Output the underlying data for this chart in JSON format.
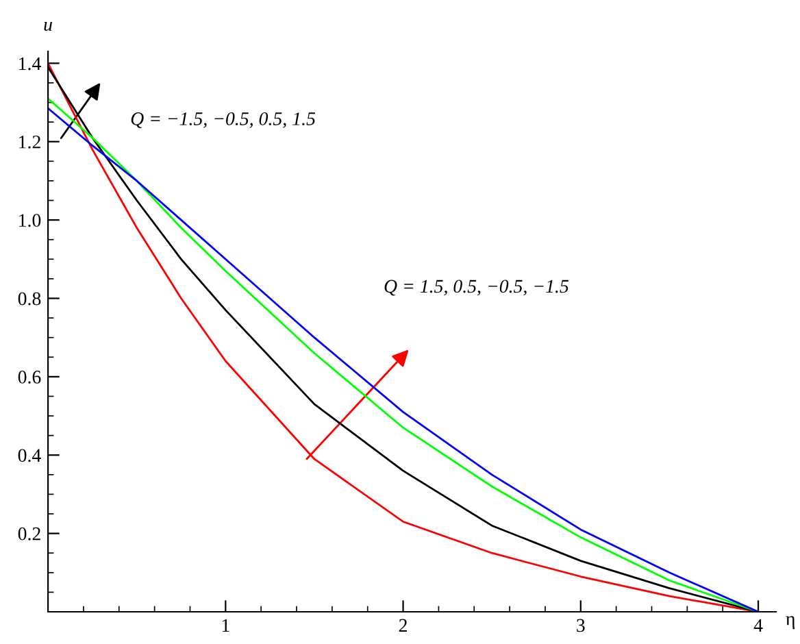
{
  "chart_data": {
    "type": "line",
    "xlabel": "η",
    "ylabel": "u",
    "x": [
      0,
      0.25,
      0.5,
      0.75,
      1,
      1.5,
      2,
      2.5,
      3,
      3.5,
      4
    ],
    "series": [
      {
        "color": "#ff0000",
        "values": [
          1.4,
          1.18,
          0.98,
          0.8,
          0.64,
          0.39,
          0.23,
          0.15,
          0.09,
          0.04,
          0
        ]
      },
      {
        "color": "#000000",
        "values": [
          1.39,
          1.21,
          1.05,
          0.9,
          0.77,
          0.53,
          0.36,
          0.22,
          0.13,
          0.06,
          0
        ]
      },
      {
        "color": "#00ff00",
        "values": [
          1.31,
          1.21,
          1.1,
          0.98,
          0.87,
          0.66,
          0.47,
          0.32,
          0.19,
          0.08,
          0
        ]
      },
      {
        "color": "#0000ff",
        "values": [
          1.285,
          1.19,
          1.1,
          1.0,
          0.9,
          0.7,
          0.51,
          0.35,
          0.21,
          0.1,
          0
        ]
      }
    ],
    "annotations": [
      "Q = −1.5, −0.5, 0.5, 1.5",
      "Q = 1.5, 0.5, −0.5, −1.5"
    ],
    "xlim": [
      0,
      4.1
    ],
    "ylim": [
      0,
      1.43
    ],
    "xticks": [
      1,
      2,
      3,
      4
    ],
    "yticks": [
      0.2,
      0.4,
      0.6,
      0.8,
      {
        "value": 1.0,
        "label": "1.0"
      },
      1.2,
      1.4
    ],
    "grid": false,
    "legend": false,
    "marker": "none",
    "line_style": "solid"
  }
}
